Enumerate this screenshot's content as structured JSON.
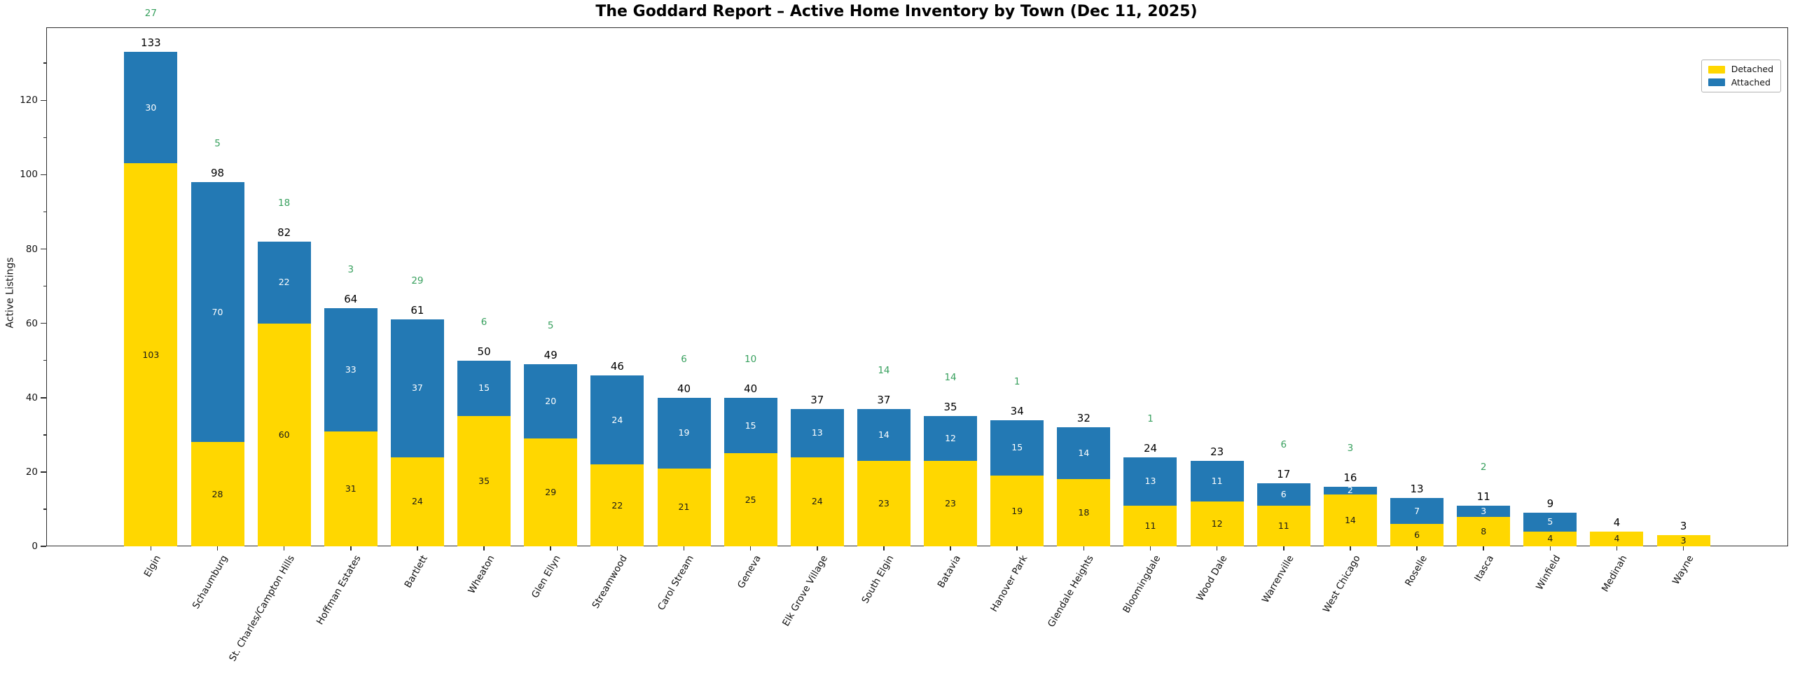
{
  "title": "The Goddard Report – Active Home Inventory by Town (Dec 11, 2025)",
  "colors": {
    "detached": "#FFD700",
    "attached": "#2379B4",
    "green_annotation": "#38A05E",
    "axis": "#2e2e2e",
    "detached_label_text": "#1a1a1a",
    "attached_label_text": "#ffffff"
  },
  "legend": {
    "detached_label": "Detached",
    "attached_label": "Attached",
    "position": "upper right"
  },
  "chart_data": {
    "type": "bar",
    "stacked": true,
    "title": "The Goddard Report – Active Home Inventory by Town (Dec 11, 2025)",
    "xlabel": "",
    "ylabel": "Active Listings",
    "yticks": [
      0,
      20,
      40,
      60,
      80,
      100,
      120
    ],
    "minor_ytick_step": 10,
    "ylim": [
      0,
      139.65
    ],
    "grid": false,
    "legend_position": "upper right",
    "categories": [
      "Elgin",
      "Schaumburg",
      "St. Charles/Campton Hills",
      "Hoffman Estates",
      "Bartlett",
      "Wheaton",
      "Glen Ellyn",
      "Streamwood",
      "Carol Stream",
      "Geneva",
      "Elk Grove Village",
      "South Elgin",
      "Batavia",
      "Hanover Park",
      "Glendale Heights",
      "Bloomingdale",
      "Wood Dale",
      "Warrenville",
      "West Chicago",
      "Roselle",
      "Itasca",
      "Winfield",
      "Medinah",
      "Wayne"
    ],
    "series": [
      {
        "name": "Detached",
        "color": "#FFD700",
        "values": [
          103,
          28,
          60,
          31,
          24,
          35,
          29,
          22,
          21,
          25,
          24,
          23,
          23,
          19,
          18,
          11,
          12,
          11,
          14,
          6,
          8,
          4,
          4,
          3
        ]
      },
      {
        "name": "Attached",
        "color": "#2379B4",
        "values": [
          30,
          70,
          22,
          33,
          37,
          15,
          20,
          24,
          19,
          15,
          13,
          14,
          12,
          15,
          14,
          13,
          11,
          6,
          2,
          7,
          3,
          5,
          0,
          0
        ]
      }
    ],
    "totals": [
      133,
      98,
      82,
      64,
      61,
      50,
      49,
      46,
      40,
      40,
      37,
      37,
      35,
      34,
      32,
      24,
      23,
      17,
      16,
      13,
      11,
      9,
      4,
      3
    ],
    "green_annotations": [
      27,
      5,
      18,
      3,
      29,
      6,
      5,
      null,
      6,
      10,
      null,
      14,
      14,
      1,
      null,
      1,
      null,
      6,
      3,
      null,
      2,
      null,
      null,
      null
    ]
  }
}
